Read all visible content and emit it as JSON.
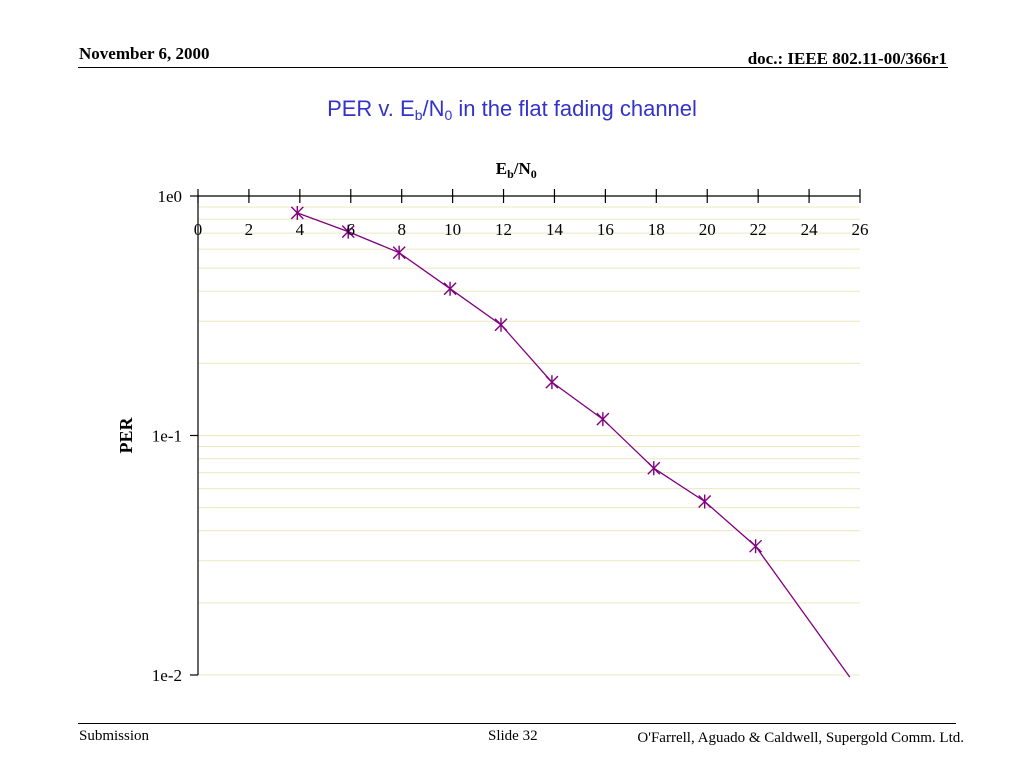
{
  "header": {
    "date": "November 6, 2000",
    "doc_id": "doc.: IEEE 802.11-00/366r1"
  },
  "slide_title": {
    "prefix": "PER v. E",
    "sub1": "b",
    "mid": "/N",
    "sub2": "0",
    "suffix": " in the flat fading channel"
  },
  "footer": {
    "left": "Submission",
    "center": "Slide 32",
    "right": "O'Farrell, Aguado & Caldwell, Supergold Comm. Ltd."
  },
  "colors": {
    "title": "#3333cc",
    "series": "#800080",
    "grid": "#ece8c0"
  },
  "chart_data": {
    "type": "line",
    "title": "",
    "xlabel": {
      "main": "E",
      "sub1": "b",
      "mid": "/N",
      "sub2": "0"
    },
    "ylabel": "PER",
    "xlim": [
      0,
      26
    ],
    "ylim": [
      0.01,
      1
    ],
    "yscale": "log",
    "x_axis_position": "top",
    "x_ticks": [
      0,
      2,
      4,
      6,
      8,
      10,
      12,
      14,
      16,
      18,
      20,
      22,
      24,
      26
    ],
    "y_ticks": [
      {
        "value": 1,
        "label": "1e0"
      },
      {
        "value": 0.1,
        "label": "1e-1"
      },
      {
        "value": 0.01,
        "label": "1e-2"
      }
    ],
    "grid": "horizontal minor",
    "series": [
      {
        "marker": "asterisk",
        "x": [
          3.9,
          5.9,
          7.9,
          9.9,
          11.9,
          13.9,
          15.9,
          17.9,
          19.9,
          21.9,
          25.6
        ],
        "y": [
          0.85,
          0.71,
          0.58,
          0.41,
          0.29,
          0.167,
          0.117,
          0.073,
          0.053,
          0.0345,
          0.0098
        ],
        "markers_x": [
          3.9,
          5.9,
          7.9,
          9.9,
          11.9,
          13.9,
          15.9,
          17.9,
          19.9,
          21.9
        ]
      }
    ]
  }
}
